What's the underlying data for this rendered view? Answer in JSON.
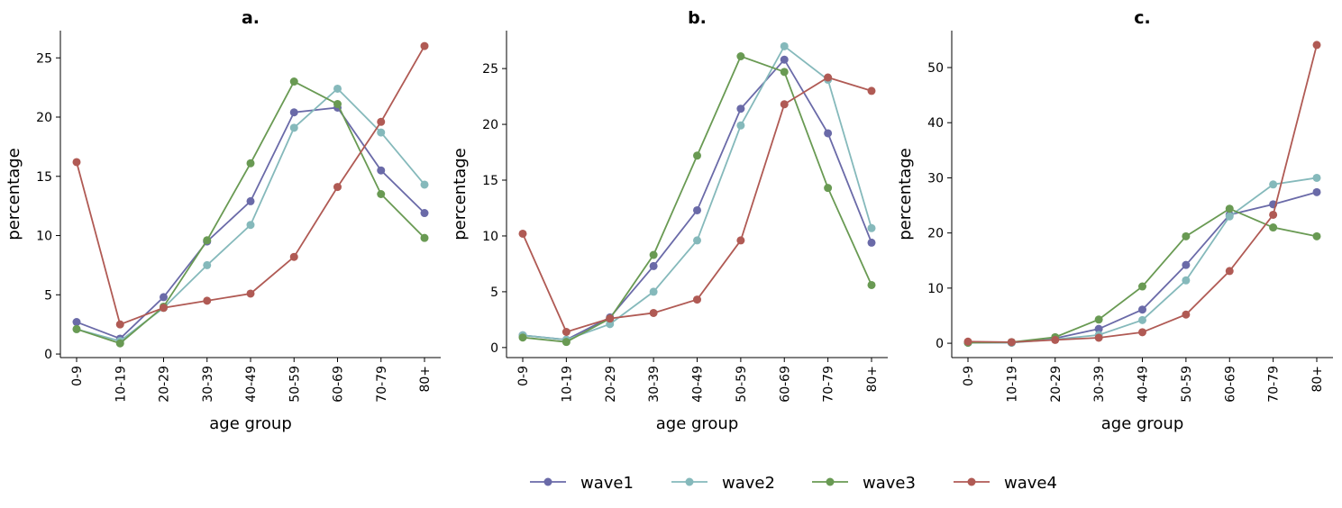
{
  "colors": {
    "wave1": "#6a6aa8",
    "wave2": "#85b9bb",
    "wave3": "#699a53",
    "wave4": "#b05a54"
  },
  "legend": {
    "placement": "bottom-center",
    "entries": [
      "wave1",
      "wave2",
      "wave3",
      "wave4"
    ]
  },
  "chart_data": [
    {
      "type": "line",
      "title": "a.",
      "xlabel": "age group",
      "ylabel": "percentage",
      "categories": [
        "0-9",
        "10-19",
        "20-29",
        "30-39",
        "40-49",
        "50-59",
        "60-69",
        "70-79",
        "80+"
      ],
      "ylim": [
        -0.3,
        27.3
      ],
      "yticks": [
        0,
        5,
        10,
        15,
        20,
        25
      ],
      "grid": false,
      "series": [
        {
          "name": "wave1",
          "values": [
            2.7,
            1.3,
            4.8,
            9.5,
            12.9,
            20.4,
            20.8,
            15.5,
            11.9
          ]
        },
        {
          "name": "wave2",
          "values": [
            2.1,
            1.1,
            3.9,
            7.5,
            10.9,
            19.1,
            22.4,
            18.7,
            14.3
          ]
        },
        {
          "name": "wave3",
          "values": [
            2.1,
            0.9,
            4.0,
            9.6,
            16.1,
            23.0,
            21.1,
            13.5,
            9.8
          ]
        },
        {
          "name": "wave4",
          "values": [
            16.2,
            2.5,
            3.9,
            4.5,
            5.1,
            8.2,
            14.1,
            19.6,
            26.0
          ]
        }
      ]
    },
    {
      "type": "line",
      "title": "b.",
      "xlabel": "age group",
      "ylabel": "percentage",
      "categories": [
        "0-9",
        "10-19",
        "20-29",
        "30-39",
        "40-49",
        "50-59",
        "60-69",
        "70-79",
        "80+"
      ],
      "ylim": [
        -0.9,
        28.4
      ],
      "yticks": [
        0,
        5,
        10,
        15,
        20,
        25
      ],
      "grid": false,
      "series": [
        {
          "name": "wave1",
          "values": [
            1.1,
            0.7,
            2.7,
            7.3,
            12.3,
            21.4,
            25.8,
            19.2,
            9.4
          ]
        },
        {
          "name": "wave2",
          "values": [
            1.1,
            0.7,
            2.1,
            5.0,
            9.6,
            19.9,
            27.0,
            24.0,
            10.7
          ]
        },
        {
          "name": "wave3",
          "values": [
            0.9,
            0.5,
            2.6,
            8.3,
            17.2,
            26.1,
            24.7,
            14.3,
            5.6
          ]
        },
        {
          "name": "wave4",
          "values": [
            10.2,
            1.4,
            2.6,
            3.1,
            4.3,
            9.6,
            21.8,
            24.2,
            23.0
          ]
        }
      ]
    },
    {
      "type": "line",
      "title": "c.",
      "xlabel": "age group",
      "ylabel": "percentage",
      "categories": [
        "0-9",
        "10-19",
        "20-29",
        "30-39",
        "40-49",
        "50-59",
        "60-69",
        "70-79",
        "80+"
      ],
      "ylim": [
        -2.6,
        56.7
      ],
      "yticks": [
        0,
        10,
        20,
        30,
        40,
        50
      ],
      "grid": false,
      "series": [
        {
          "name": "wave1",
          "values": [
            0.1,
            0.1,
            0.9,
            2.6,
            6.1,
            14.2,
            23.3,
            25.2,
            27.4
          ]
        },
        {
          "name": "wave2",
          "values": [
            0.1,
            0.1,
            0.7,
            1.5,
            4.2,
            11.4,
            23.0,
            28.8,
            30.0
          ]
        },
        {
          "name": "wave3",
          "values": [
            0.1,
            0.2,
            1.1,
            4.3,
            10.3,
            19.4,
            24.4,
            21.0,
            19.4
          ]
        },
        {
          "name": "wave4",
          "values": [
            0.3,
            0.2,
            0.6,
            1.0,
            2.0,
            5.2,
            13.1,
            23.3,
            54.1
          ]
        }
      ]
    }
  ]
}
